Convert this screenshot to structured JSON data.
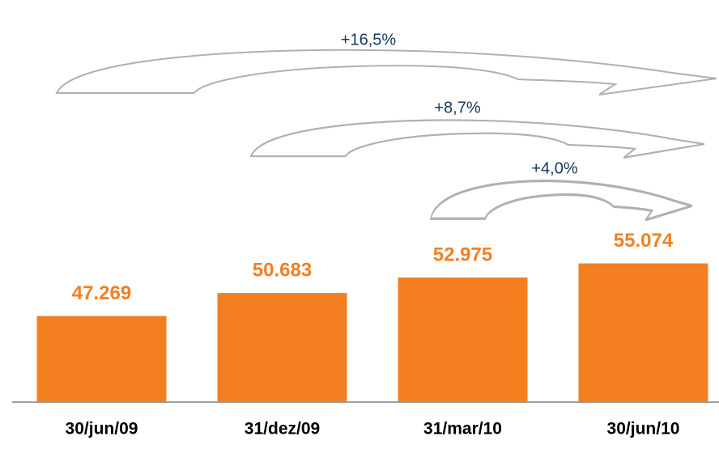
{
  "chart_data": {
    "type": "bar",
    "categories": [
      "30/jun/09",
      "31/dez/09",
      "31/mar/10",
      "30/jun/10"
    ],
    "values": [
      47269,
      50683,
      52975,
      55074
    ],
    "value_labels": [
      "47.269",
      "50.683",
      "52.975",
      "55.074"
    ],
    "color": "#f37f21",
    "ylim": [
      34500,
      60000
    ],
    "annotations": [
      "+16,5%",
      "+8,7%",
      "+4,0%"
    ]
  }
}
